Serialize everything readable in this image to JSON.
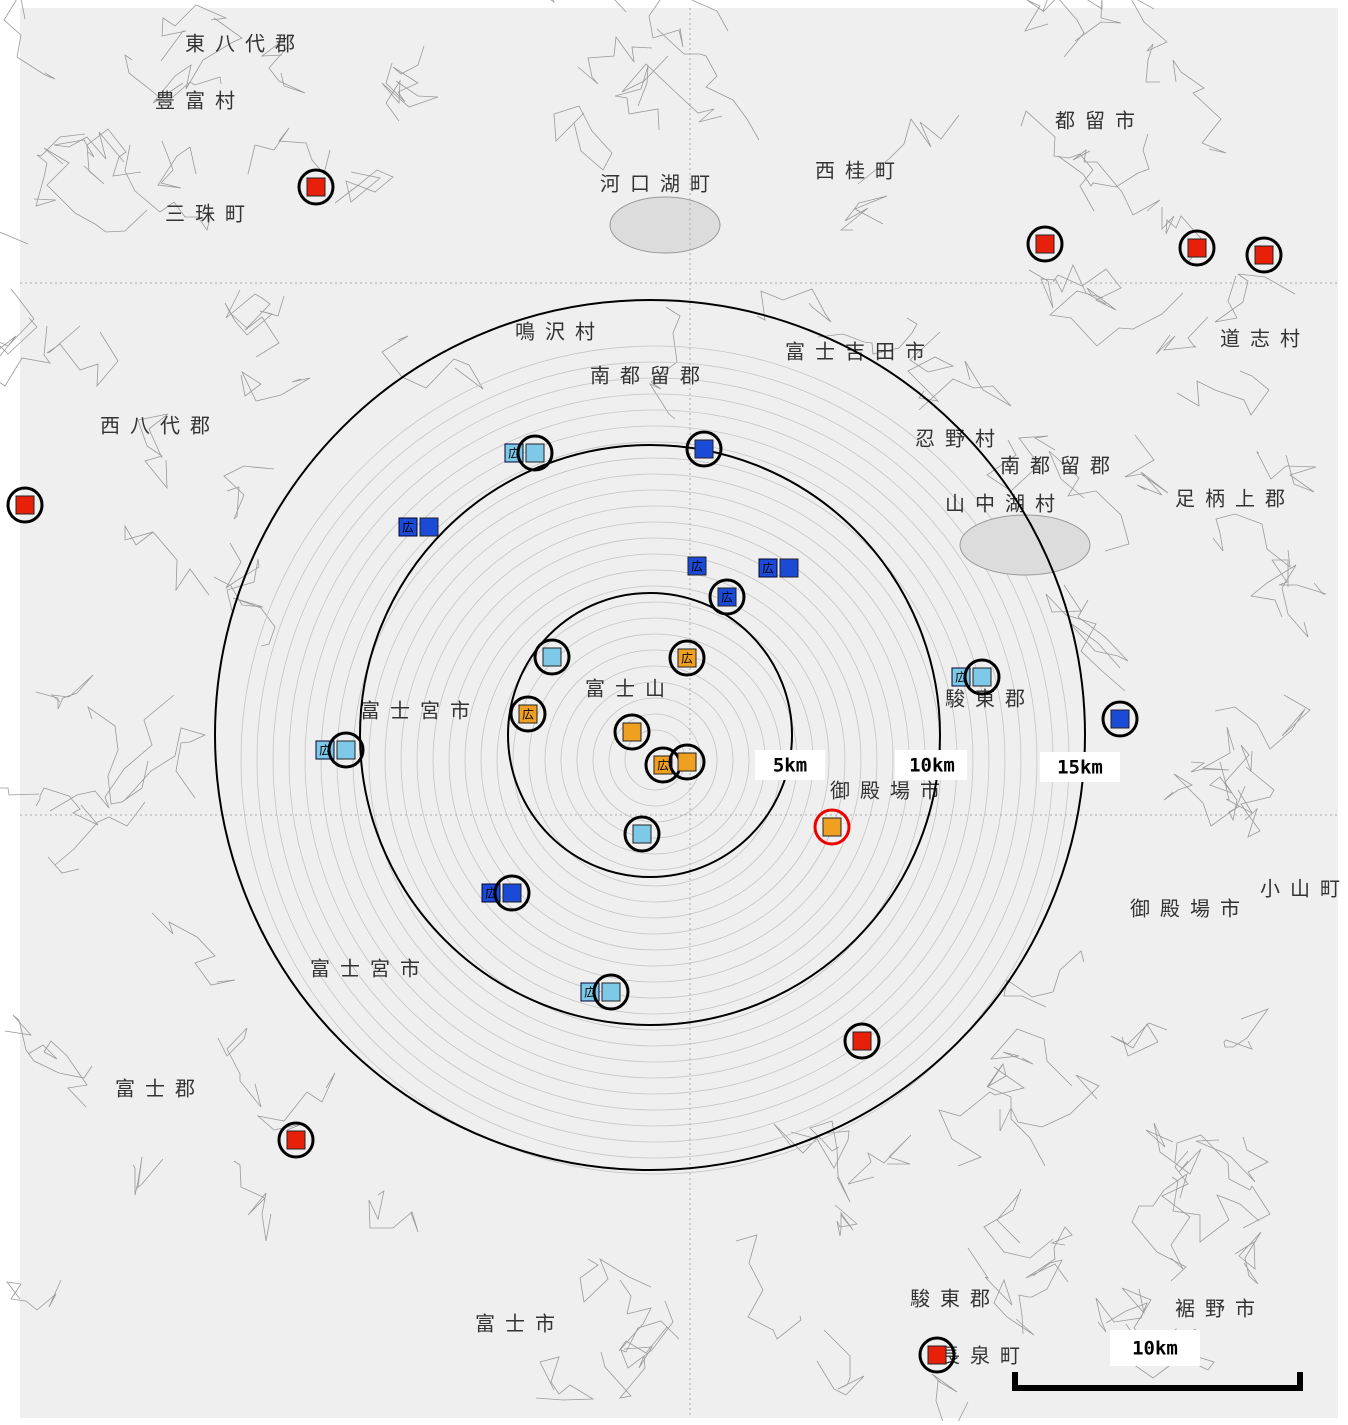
{
  "ring_labels": [
    "5km",
    "10km",
    "15km"
  ],
  "scale_bar_label": "10km",
  "marker_tag": "広",
  "place_names": [
    "東八代郡",
    "都留市",
    "西桂町",
    "富士吉田市",
    "南都留郡",
    "南都留郡",
    "西八代郡",
    "富士宮市",
    "富士宮市",
    "富士山",
    "駿東郡",
    "御殿場市",
    "御殿場市",
    "駿東郡",
    "富士郡",
    "富士市",
    "裾野市",
    "足柄上郡",
    "山中湖村",
    "忍野村",
    "鳴沢村",
    "河口湖町",
    "小山町",
    "長泉町",
    "三珠町",
    "豊富村",
    "道志村"
  ]
}
